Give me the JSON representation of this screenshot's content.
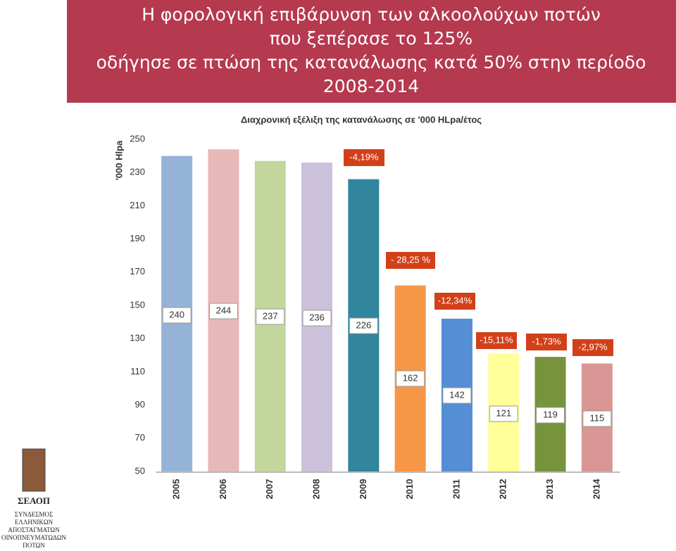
{
  "header": {
    "title_lines": [
      "Η φορολογική επιβάρυνση των αλκοολούχων ποτών",
      "που ξεπέρασε το 125%",
      "οδήγησε σε πτώση της κατανάλωσης κατά 50% στην περίοδο",
      "2008-2014"
    ]
  },
  "chart_data": {
    "type": "bar",
    "title": "Διαχρονική εξέλιξη της κατανάλωσης σε '000 HLpa/έτος",
    "y_label": "'000 Hlpa",
    "categories": [
      "2005",
      "2006",
      "2007",
      "2008",
      "2009",
      "2010",
      "2011",
      "2012",
      "2013",
      "2014"
    ],
    "values": [
      240,
      244,
      237,
      236,
      226,
      162,
      142,
      121,
      119,
      115
    ],
    "colors": [
      "#95b3d7",
      "#e6b9b8",
      "#c3d69b",
      "#ccc1da",
      "#31859c",
      "#f79646",
      "#558ed5",
      "#ffff99",
      "#77933c",
      "#d99694"
    ],
    "ylim": [
      50,
      250
    ],
    "yticks": [
      50,
      70,
      90,
      110,
      130,
      150,
      170,
      190,
      210,
      230,
      250
    ],
    "grid": false,
    "annotations": [
      "-4,19%",
      "- 28,25 %",
      "-12,34%",
      "-15,11%",
      "-1,73%",
      "-2,97%"
    ]
  },
  "logo": {
    "name": "ΣΕΑΟΠ",
    "lines": [
      "ΣΥΝΔΕΣΜΟΣ",
      "ΕΛΛΗΝΙΚΩΝ",
      "ΑΠΟΣΤΑΓΜΑΤΩΝ",
      "ΟΙΝΟΠΝΕΥΜΑΤΩΔΩΝ",
      "ΠΟΤΩΝ"
    ]
  }
}
